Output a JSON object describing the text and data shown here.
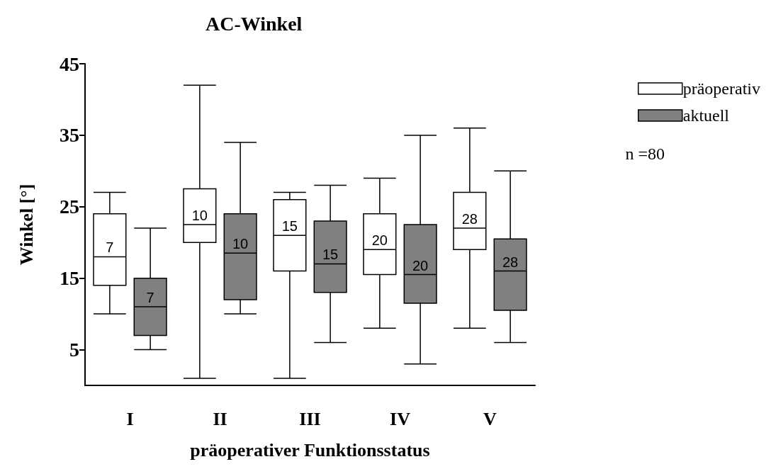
{
  "chart_data": {
    "type": "box",
    "title": "AC-Winkel",
    "xlabel": "präoperativer Funktionsstatus",
    "ylabel": "Winkel [°]",
    "categories": [
      "I",
      "II",
      "III",
      "IV",
      "V"
    ],
    "ylim": [
      0,
      45
    ],
    "yticks": [
      5,
      15,
      25,
      35,
      45
    ],
    "grid": false,
    "legend": "top right",
    "annotations": [
      "n =80"
    ],
    "series": [
      {
        "name": "präoperativ",
        "color": "#ffffff",
        "value_labels": [
          "7",
          "10",
          "15",
          "20",
          "28"
        ],
        "boxes": [
          {
            "low": 10,
            "q1": 14,
            "median": 18,
            "q3": 24,
            "high": 27
          },
          {
            "low": 1,
            "q1": 20,
            "median": 22.5,
            "q3": 27.5,
            "high": 42
          },
          {
            "low": 1,
            "q1": 16,
            "median": 21,
            "q3": 26,
            "high": 27
          },
          {
            "low": 8,
            "q1": 15.5,
            "median": 19,
            "q3": 24,
            "high": 29
          },
          {
            "low": 8,
            "q1": 19,
            "median": 22,
            "q3": 27,
            "high": 36
          }
        ]
      },
      {
        "name": "aktuell",
        "color": "#808080",
        "value_labels": [
          "7",
          "10",
          "15",
          "20",
          "28"
        ],
        "boxes": [
          {
            "low": 5,
            "q1": 7,
            "median": 11,
            "q3": 15,
            "high": 22
          },
          {
            "low": 10,
            "q1": 12,
            "median": 18.5,
            "q3": 24,
            "high": 34
          },
          {
            "low": 6,
            "q1": 13,
            "median": 17,
            "q3": 23,
            "high": 28
          },
          {
            "low": 3,
            "q1": 11.5,
            "median": 15.5,
            "q3": 22.5,
            "high": 35
          },
          {
            "low": 6,
            "q1": 10.5,
            "median": 16,
            "q3": 20.5,
            "high": 30
          }
        ]
      }
    ]
  }
}
